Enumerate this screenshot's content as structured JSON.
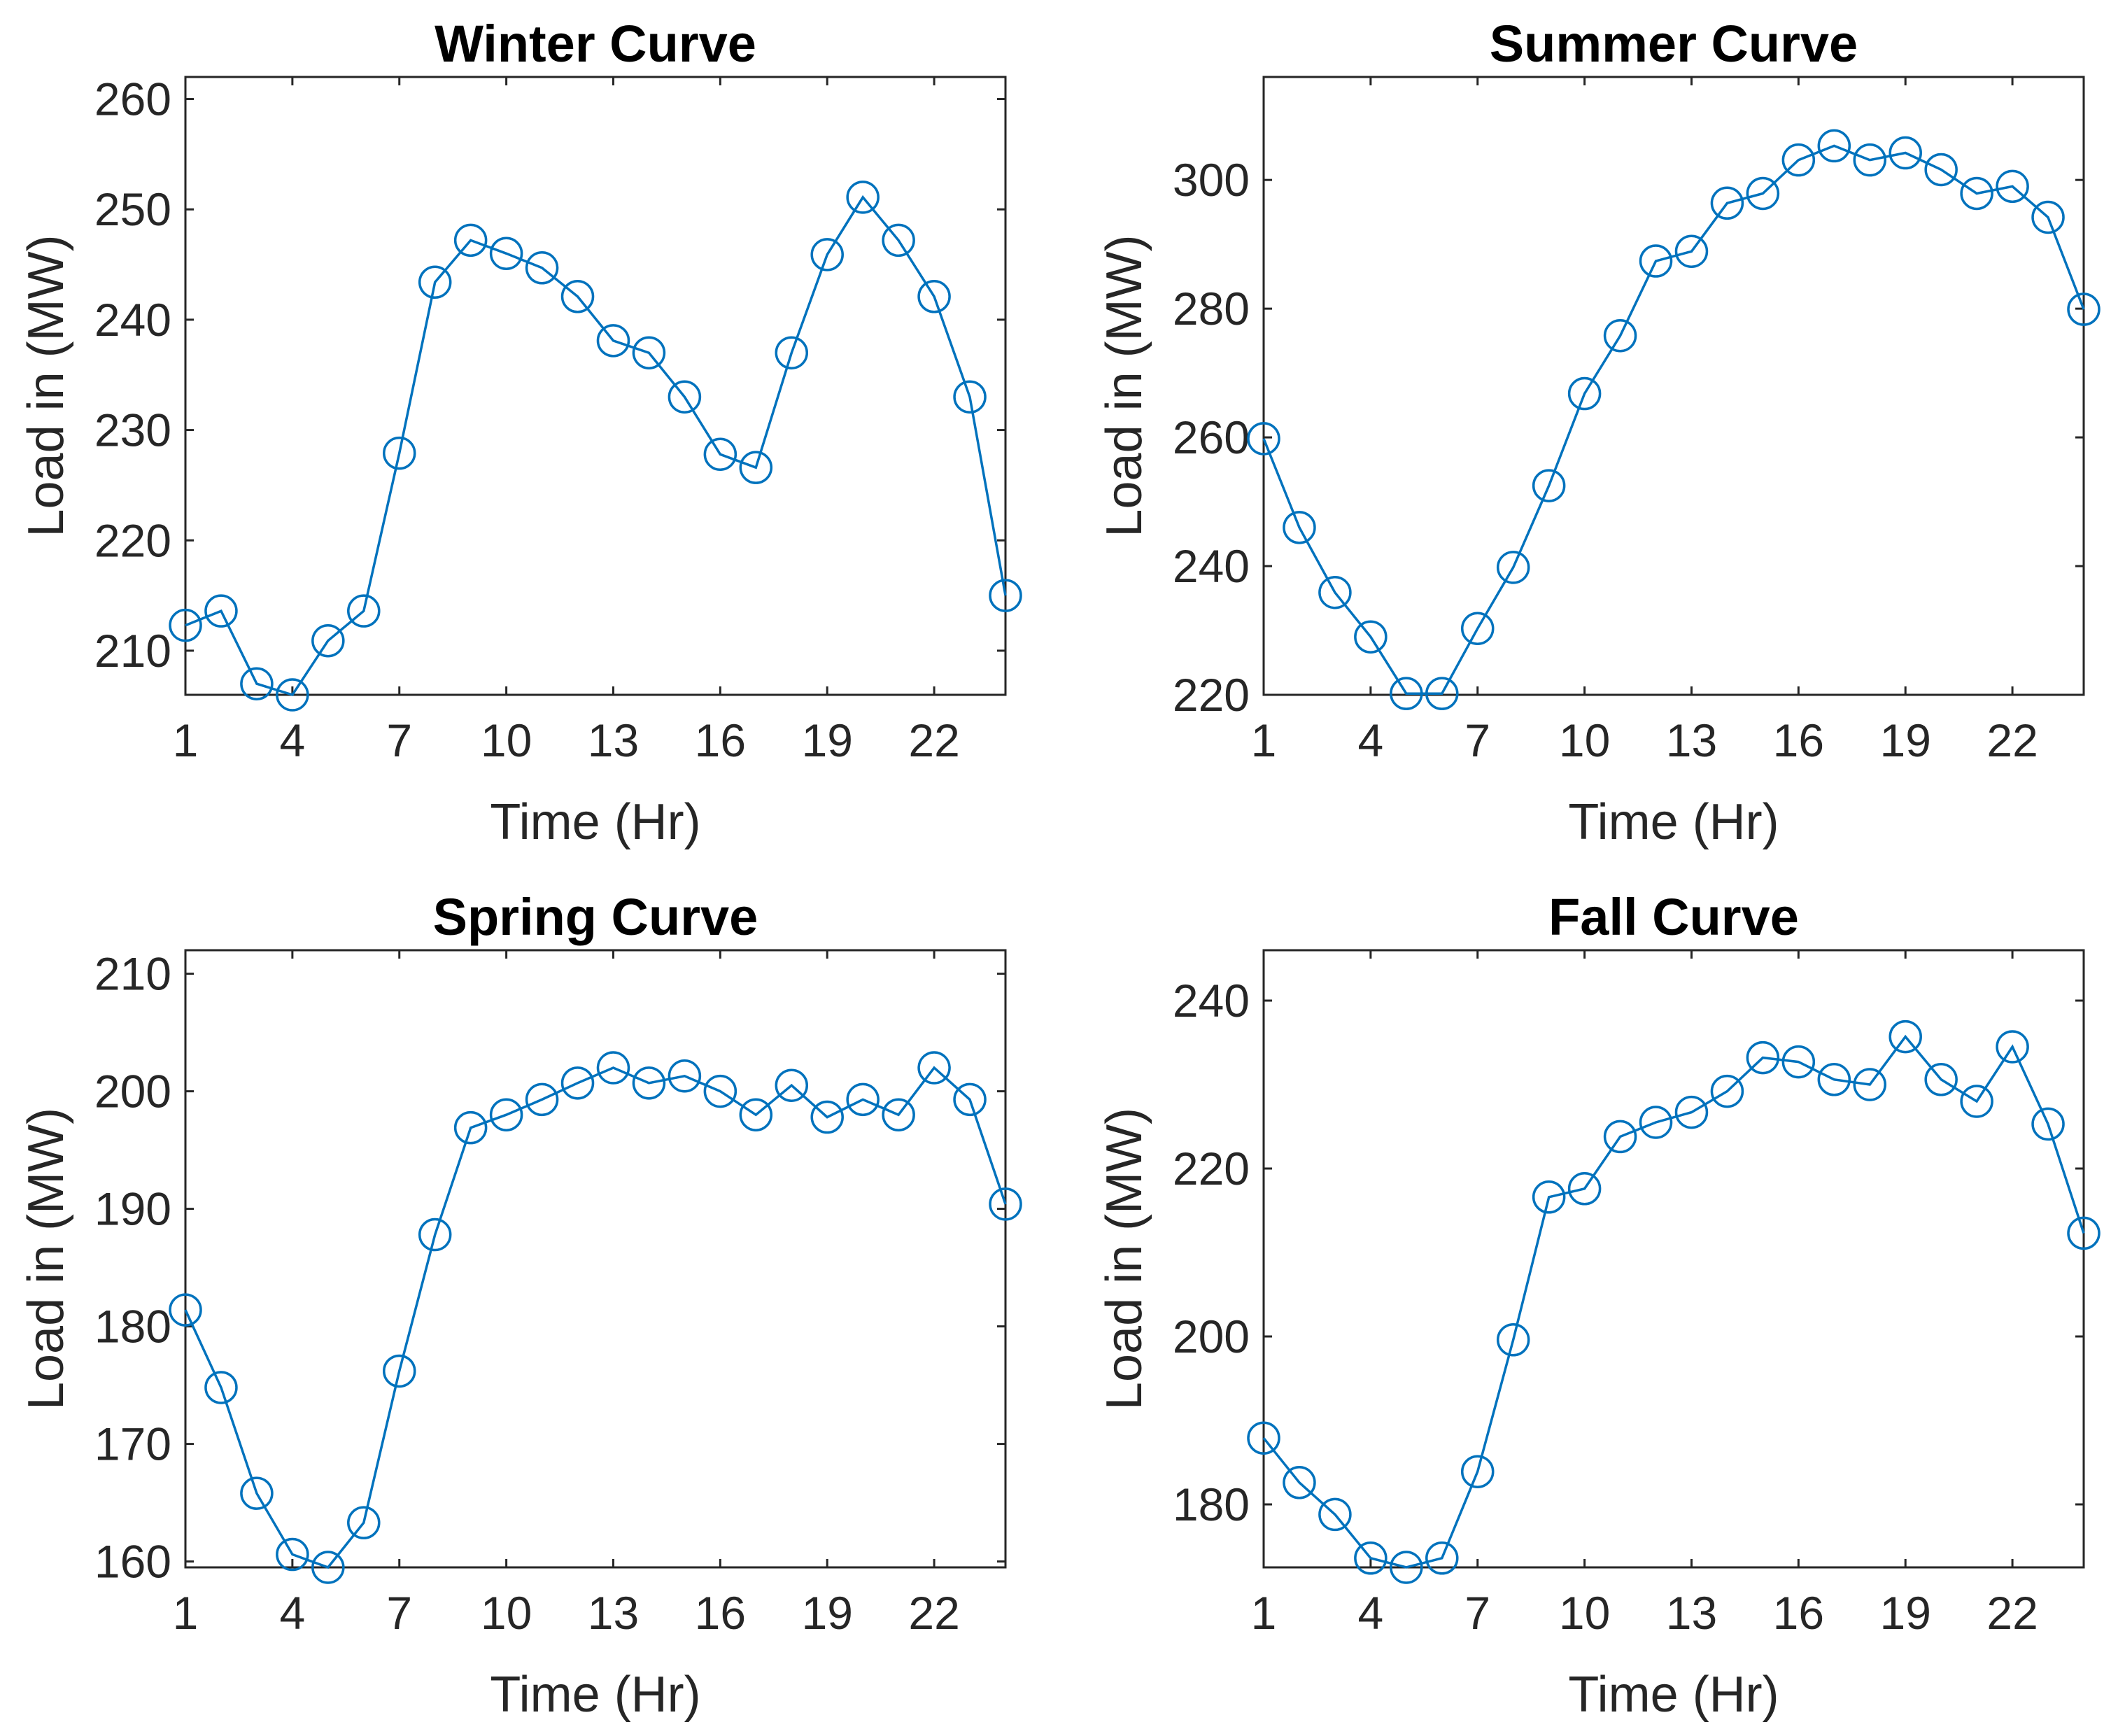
{
  "colors": {
    "series": "#0072BD",
    "axis": "#262626",
    "title": "#000000"
  },
  "chart_data": [
    {
      "type": "line",
      "title": "Winter Curve",
      "xlabel": "Time (Hr)",
      "ylabel": "Load in (MW)",
      "xlim": [
        1,
        24
      ],
      "ylim": [
        206,
        262
      ],
      "xticks": [
        1,
        4,
        7,
        10,
        13,
        16,
        19,
        22
      ],
      "yticks": [
        210,
        220,
        230,
        240,
        250,
        260
      ],
      "marker": "circle",
      "series": [
        {
          "name": "Winter",
          "x": [
            1,
            2,
            3,
            4,
            5,
            6,
            7,
            8,
            9,
            10,
            11,
            12,
            13,
            14,
            15,
            16,
            17,
            18,
            19,
            20,
            21,
            22,
            23,
            24
          ],
          "values": [
            212.3,
            213.6,
            207.0,
            206.0,
            210.9,
            213.6,
            227.9,
            243.4,
            247.2,
            246.0,
            244.7,
            242.1,
            238.1,
            237.0,
            233.0,
            227.8,
            226.6,
            237.0,
            245.9,
            251.1,
            247.2,
            242.1,
            233.0,
            215.0
          ]
        }
      ]
    },
    {
      "type": "line",
      "title": "Summer Curve",
      "xlabel": "Time (Hr)",
      "ylabel": "Load in (MW)",
      "xlim": [
        1,
        24
      ],
      "ylim": [
        220,
        316
      ],
      "xticks": [
        1,
        4,
        7,
        10,
        13,
        16,
        19,
        22
      ],
      "yticks": [
        220,
        240,
        260,
        280,
        300
      ],
      "marker": "circle",
      "series": [
        {
          "name": "Summer",
          "x": [
            1,
            2,
            3,
            4,
            5,
            6,
            7,
            8,
            9,
            10,
            11,
            12,
            13,
            14,
            15,
            16,
            17,
            18,
            19,
            20,
            21,
            22,
            23,
            24
          ],
          "values": [
            259.8,
            246.0,
            235.9,
            229.0,
            220.2,
            220.2,
            230.3,
            239.8,
            252.5,
            266.8,
            275.8,
            287.4,
            288.9,
            296.4,
            297.9,
            303.1,
            305.3,
            303.1,
            304.2,
            301.6,
            297.9,
            299.0,
            294.2,
            279.9
          ]
        }
      ]
    },
    {
      "type": "line",
      "title": "Spring Curve",
      "xlabel": "Time (Hr)",
      "ylabel": "Load in (MW)",
      "xlim": [
        1,
        24
      ],
      "ylim": [
        159.5,
        212
      ],
      "xticks": [
        1,
        4,
        7,
        10,
        13,
        16,
        19,
        22
      ],
      "yticks": [
        160,
        170,
        180,
        190,
        200,
        210
      ],
      "marker": "circle",
      "series": [
        {
          "name": "Spring",
          "x": [
            1,
            2,
            3,
            4,
            5,
            6,
            7,
            8,
            9,
            10,
            11,
            12,
            13,
            14,
            15,
            16,
            17,
            18,
            19,
            20,
            21,
            22,
            23,
            24
          ],
          "values": [
            181.4,
            174.8,
            165.8,
            160.6,
            159.5,
            163.3,
            176.2,
            187.8,
            196.9,
            198.0,
            199.3,
            200.7,
            202.0,
            200.7,
            201.3,
            200.0,
            198.0,
            200.5,
            197.8,
            199.3,
            198.0,
            202.0,
            199.3,
            190.4
          ]
        }
      ]
    },
    {
      "type": "line",
      "title": "Fall Curve",
      "xlabel": "Time (Hr)",
      "ylabel": "Load in (MW)",
      "xlim": [
        1,
        24
      ],
      "ylim": [
        172.5,
        246
      ],
      "xticks": [
        1,
        4,
        7,
        10,
        13,
        16,
        19,
        22
      ],
      "yticks": [
        180,
        200,
        220,
        240
      ],
      "marker": "circle",
      "series": [
        {
          "name": "Fall",
          "x": [
            1,
            2,
            3,
            4,
            5,
            6,
            7,
            8,
            9,
            10,
            11,
            12,
            13,
            14,
            15,
            16,
            17,
            18,
            19,
            20,
            21,
            22,
            23,
            24
          ],
          "values": [
            187.9,
            182.6,
            178.8,
            173.6,
            172.5,
            173.6,
            183.9,
            199.6,
            216.6,
            217.6,
            223.8,
            225.5,
            226.7,
            229.2,
            233.2,
            232.7,
            230.6,
            230.0,
            235.7,
            230.6,
            228.0,
            234.5,
            225.3,
            212.3
          ]
        }
      ]
    }
  ]
}
